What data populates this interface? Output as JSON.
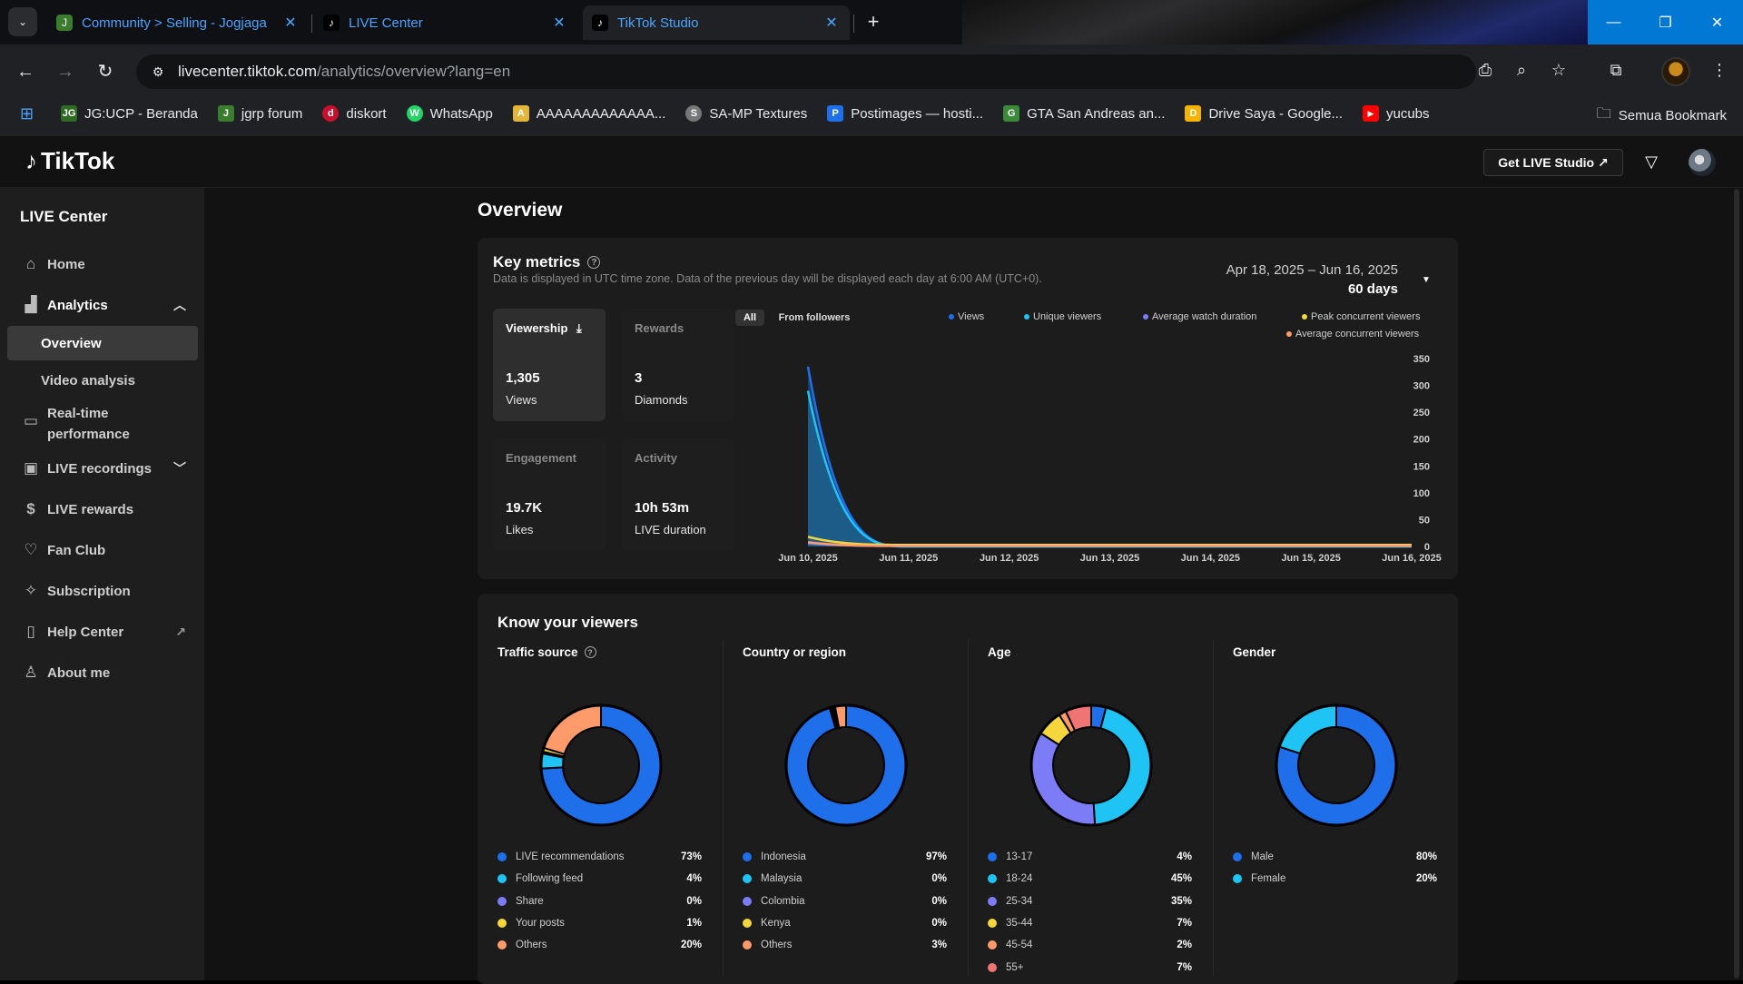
{
  "browser": {
    "tabs": [
      {
        "title": "Community > Selling - Jogjaga",
        "favicon": "jogja-favicon",
        "favcolor": "#3a7d2e"
      },
      {
        "title": "LIVE Center",
        "favicon": "tiktok-favicon",
        "favcolor": "#000000"
      },
      {
        "title": "TikTok Studio",
        "favicon": "tiktok-favicon",
        "favcolor": "#000000"
      }
    ],
    "address": {
      "host": "livecenter.tiktok.com",
      "path": "/analytics/overview?lang=en"
    },
    "bookmarks": [
      {
        "label": "JG:UCP - Beranda",
        "icon": "JG",
        "color": "#2e6b23"
      },
      {
        "label": "jgrp forum",
        "icon": "J",
        "color": "#3a7d2e"
      },
      {
        "label": "diskort",
        "icon": "d",
        "color": "#c8102e"
      },
      {
        "label": "WhatsApp",
        "icon": "W",
        "color": "#25d366"
      },
      {
        "label": "AAAAAAAAAAAAA...",
        "icon": "A",
        "color": "#e2b53b"
      },
      {
        "label": "SA-MP Textures",
        "icon": "S",
        "color": "#777777"
      },
      {
        "label": "Postimages — hosti...",
        "icon": "P",
        "color": "#1f6feb"
      },
      {
        "label": "GTA San Andreas an...",
        "icon": "G",
        "color": "#3a8a3a"
      },
      {
        "label": "Drive Saya - Google...",
        "icon": "D",
        "color": "#f4b400"
      },
      {
        "label": "yucubs",
        "icon": "▶",
        "color": "#ff0000"
      }
    ],
    "all_bookmarks": "Semua Bookmark"
  },
  "header": {
    "logo": "TikTok",
    "get_studio": "Get LIVE Studio ↗"
  },
  "sidebar": {
    "title": "LIVE Center",
    "home": "Home",
    "analytics": "Analytics",
    "overview": "Overview",
    "video_analysis": "Video analysis",
    "realtime_1": "Real-time",
    "realtime_2": "performance",
    "recordings": "LIVE recordings",
    "rewards": "LIVE rewards",
    "fanclub": "Fan Club",
    "subscription": "Subscription",
    "help": "Help Center",
    "about": "About me"
  },
  "overview": {
    "title": "Overview",
    "key_metrics": "Key metrics",
    "key_metrics_note": "Data is displayed in UTC time zone. Data of the previous day will be displayed each day at 6:00 AM (UTC+0).",
    "date_range": "Apr 18, 2025 – Jun 16, 2025",
    "days": "60 days",
    "metrics": {
      "viewership": {
        "label": "Viewership",
        "value": "1,305",
        "unit": "Views"
      },
      "rewards": {
        "label": "Rewards",
        "value": "3",
        "unit": "Diamonds"
      },
      "engagement": {
        "label": "Engagement",
        "value": "19.7K",
        "unit": "Likes"
      },
      "activity": {
        "label": "Activity",
        "value": "10h 53m",
        "unit": "LIVE duration"
      }
    },
    "segments": {
      "all": "All",
      "followers": "From followers"
    },
    "legend": {
      "views": "Views",
      "unique": "Unique viewers",
      "avg_watch": "Average watch duration",
      "peak": "Peak concurrent viewers",
      "avg_conc": "Average concurrent viewers"
    }
  },
  "chart_data": {
    "type": "area",
    "x": [
      "Jun 10, 2025",
      "Jun 11, 2025",
      "Jun 12, 2025",
      "Jun 13, 2025",
      "Jun 14, 2025",
      "Jun 15, 2025",
      "Jun 16, 2025"
    ],
    "yticks": [
      0,
      50,
      100,
      150,
      200,
      250,
      300,
      350
    ],
    "ylim": [
      0,
      350
    ],
    "series": [
      {
        "name": "Views",
        "color": "#1f6feb",
        "values": [
          335,
          0,
          0,
          0,
          0,
          0,
          0
        ]
      },
      {
        "name": "Unique viewers",
        "color": "#20c4f4",
        "values": [
          290,
          0,
          0,
          0,
          0,
          0,
          0
        ]
      },
      {
        "name": "Average watch duration",
        "color": "#7b7cf6",
        "values": [
          6,
          1,
          1,
          1,
          1,
          1,
          1
        ]
      },
      {
        "name": "Peak concurrent viewers",
        "color": "#f5d63d",
        "values": [
          18,
          3,
          3,
          3,
          3,
          3,
          3
        ]
      },
      {
        "name": "Average concurrent viewers",
        "color": "#ff9a6b",
        "values": [
          8,
          1,
          1,
          1,
          1,
          1,
          1
        ]
      }
    ]
  },
  "viewers": {
    "title": "Know your viewers",
    "columns": [
      {
        "title": "Traffic source",
        "help": true,
        "rows": [
          {
            "label": "LIVE recommendations",
            "pct": "73%",
            "value": 73,
            "color": "#1f6feb"
          },
          {
            "label": "Following feed",
            "pct": "4%",
            "value": 4,
            "color": "#20c4f4"
          },
          {
            "label": "Share",
            "pct": "0%",
            "value": 0.5,
            "color": "#7b7cf6"
          },
          {
            "label": "Your posts",
            "pct": "1%",
            "value": 1,
            "color": "#f5d63d"
          },
          {
            "label": "Others",
            "pct": "20%",
            "value": 20,
            "color": "#ff9a6b"
          }
        ]
      },
      {
        "title": "Country or region",
        "help": false,
        "rows": [
          {
            "label": "Indonesia",
            "pct": "97%",
            "value": 97,
            "color": "#1f6feb"
          },
          {
            "label": "Malaysia",
            "pct": "0%",
            "value": 0.5,
            "color": "#20c4f4"
          },
          {
            "label": "Colombia",
            "pct": "0%",
            "value": 0.5,
            "color": "#7b7cf6"
          },
          {
            "label": "Kenya",
            "pct": "0%",
            "value": 0.5,
            "color": "#f5d63d"
          },
          {
            "label": "Others",
            "pct": "3%",
            "value": 3,
            "color": "#ff9a6b"
          }
        ]
      },
      {
        "title": "Age",
        "help": false,
        "rows": [
          {
            "label": "13-17",
            "pct": "4%",
            "value": 4,
            "color": "#1f6feb"
          },
          {
            "label": "18-24",
            "pct": "45%",
            "value": 45,
            "color": "#20c4f4"
          },
          {
            "label": "25-34",
            "pct": "35%",
            "value": 35,
            "color": "#7b7cf6"
          },
          {
            "label": "35-44",
            "pct": "7%",
            "value": 7,
            "color": "#f5d63d"
          },
          {
            "label": "45-54",
            "pct": "2%",
            "value": 2,
            "color": "#ff9a6b"
          },
          {
            "label": "55+",
            "pct": "7%",
            "value": 7,
            "color": "#f07474"
          }
        ]
      },
      {
        "title": "Gender",
        "help": false,
        "rows": [
          {
            "label": "Male",
            "pct": "80%",
            "value": 80,
            "color": "#1f6feb"
          },
          {
            "label": "Female",
            "pct": "20%",
            "value": 20,
            "color": "#20c4f4"
          }
        ]
      }
    ]
  }
}
